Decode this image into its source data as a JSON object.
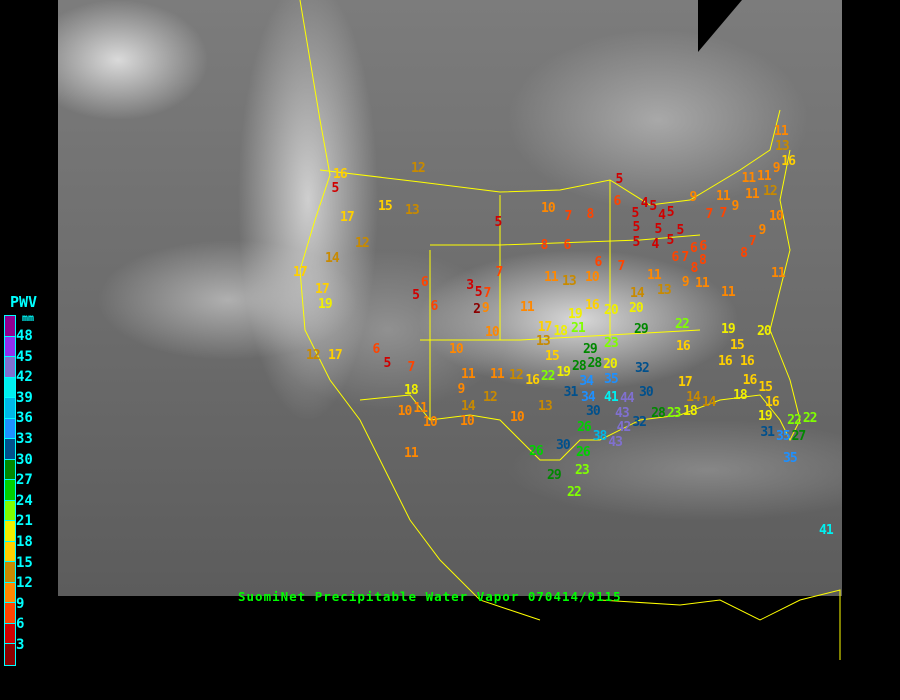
{
  "title": "SuomiNet Precipitable Water Vapor 070414/0115",
  "legend": {
    "title": "PWV",
    "unit": "mm",
    "ticks": [
      "48",
      "45",
      "42",
      "39",
      "36",
      "33",
      "30",
      "27",
      "24",
      "21",
      "18",
      "15",
      "12",
      "9",
      "6",
      "3"
    ],
    "colors": [
      "#900090",
      "#9030f0",
      "#8070d0",
      "#00f0f0",
      "#00b8e8",
      "#1e90ff",
      "#00508c",
      "#008800",
      "#00d000",
      "#80ff00",
      "#f0f000",
      "#ffd000",
      "#c88a00",
      "#ff8800",
      "#ff4400",
      "#d00000",
      "#8b0000"
    ]
  },
  "stations": [
    "16",
    "5",
    "12",
    "15",
    "13",
    "17",
    "12",
    "14",
    "17",
    "17",
    "19",
    "6",
    "5",
    "6",
    "10",
    "7",
    "5",
    "8",
    "6",
    "7",
    "11",
    "13",
    "3",
    "5",
    "7",
    "2",
    "9",
    "11",
    "10",
    "11",
    "13",
    "16",
    "9",
    "11",
    "11",
    "11",
    "12",
    "5",
    "6",
    "8",
    "9",
    "11",
    "9",
    "7",
    "7",
    "5",
    "5",
    "5",
    "4",
    "5",
    "4",
    "5",
    "5",
    "4",
    "5",
    "5",
    "6",
    "10",
    "9",
    "7",
    "8",
    "6",
    "8",
    "7",
    "6",
    "6",
    "7",
    "10",
    "8",
    "9",
    "11",
    "11",
    "11",
    "14",
    "13",
    "11",
    "16",
    "20",
    "20",
    "12",
    "17",
    "6",
    "5",
    "7",
    "18",
    "10",
    "11",
    "10",
    "10",
    "11",
    "9",
    "11",
    "12",
    "12",
    "14",
    "10",
    "10",
    "13",
    "16",
    "11",
    "26",
    "30",
    "26",
    "29",
    "23",
    "22",
    "17",
    "18",
    "19",
    "21",
    "13",
    "15",
    "22",
    "19",
    "28",
    "28",
    "29",
    "22",
    "23",
    "16",
    "19",
    "20",
    "15",
    "16",
    "16",
    "32",
    "29",
    "20",
    "35",
    "34",
    "31",
    "34",
    "30",
    "41",
    "44",
    "43",
    "30",
    "17",
    "16",
    "15",
    "14",
    "14",
    "18",
    "16",
    "19",
    "28",
    "23",
    "18",
    "26",
    "38",
    "43",
    "42",
    "32",
    "31",
    "35",
    "22",
    "22",
    "27",
    "35",
    "41"
  ]
}
